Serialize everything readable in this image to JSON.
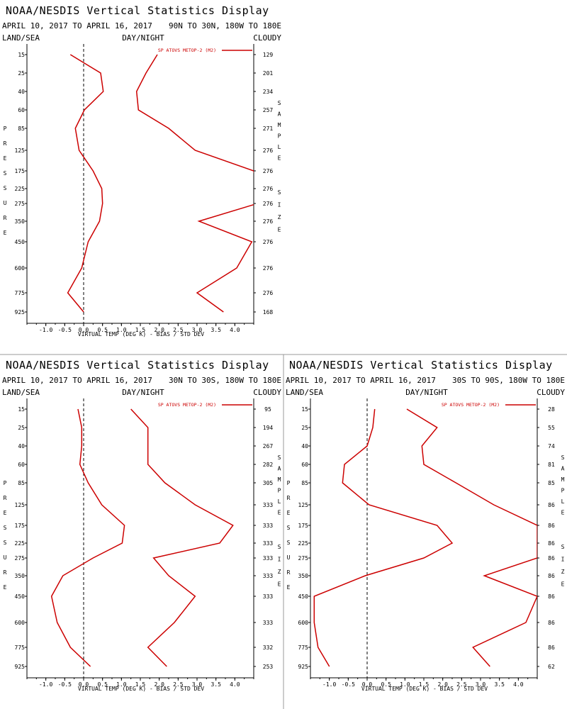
{
  "colors": {
    "series": "#cc0000",
    "divider": "#999999"
  },
  "chart_data": [
    {
      "type": "line",
      "title": "NOAA/NESDIS Vertical Statistics Display",
      "date_range": "APRIL 10, 2017 TO APRIL 16, 2017",
      "region": "90N TO 30N, 180W TO 180E",
      "top_left_label": "LAND/SEA",
      "top_center_label": "DAY/NIGHT",
      "top_right_label": "CLOUDY",
      "left_axis_vertical_label": "PRESSURE",
      "right_axis_vertical_label": "SAMPLE SIZE",
      "xlabel": "VIRTUAL TEMP (DEG K) - BIAS / STD DEV",
      "legend": "SP ATOVS METOP-2 (M2)",
      "xlim": [
        -1.5,
        4.5
      ],
      "xticks": [
        "-1.0",
        "-0.5",
        "0.0",
        "0.5",
        "1.0",
        "1.5",
        "2.0",
        "2.5",
        "3.0",
        "3.5",
        "4.0"
      ],
      "pressure_levels": [
        "15",
        "25",
        "40",
        "60",
        "85",
        "125",
        "175",
        "225",
        "275",
        "350",
        "450",
        "600",
        "775",
        "925"
      ],
      "sample_sizes": [
        "129",
        "201",
        "234",
        "257",
        "271",
        "276",
        "276",
        "276",
        "276",
        "276",
        "276",
        "276",
        "276",
        "168"
      ],
      "series": [
        {
          "values": [
            -0.35,
            0.45,
            0.52,
            0.02,
            -0.22,
            -0.12,
            0.25,
            0.48,
            0.5,
            0.42,
            0.12,
            -0.05,
            -0.42,
            0.0
          ]
        },
        {
          "values": [
            1.95,
            1.65,
            1.4,
            1.45,
            2.25,
            2.95,
            4.5,
            4.6,
            4.6,
            3.05,
            4.45,
            4.05,
            3.0,
            3.7
          ]
        }
      ]
    },
    {
      "type": "line",
      "title": "NOAA/NESDIS Vertical Statistics Display",
      "date_range": "APRIL 10, 2017 TO APRIL 16, 2017",
      "region": "30N TO 30S, 180W TO 180E",
      "top_left_label": "LAND/SEA",
      "top_center_label": "DAY/NIGHT",
      "top_right_label": "CLOUDY",
      "left_axis_vertical_label": "PRESSURE",
      "right_axis_vertical_label": "SAMPLE SIZE",
      "xlabel": "VIRTUAL TEMP (DEG K) - BIAS / STD DEV",
      "legend": "SP ATOVS METOP-2 (M2)",
      "xlim": [
        -1.5,
        4.5
      ],
      "xticks": [
        "-1.0",
        "-0.5",
        "0.0",
        "0.5",
        "1.0",
        "1.5",
        "2.0",
        "2.5",
        "3.0",
        "3.5",
        "4.0"
      ],
      "pressure_levels": [
        "15",
        "25",
        "40",
        "60",
        "85",
        "125",
        "175",
        "225",
        "275",
        "350",
        "450",
        "600",
        "775",
        "925"
      ],
      "sample_sizes": [
        "95",
        "194",
        "267",
        "282",
        "305",
        "333",
        "333",
        "333",
        "333",
        "333",
        "333",
        "333",
        "332",
        "253"
      ],
      "series": [
        {
          "values": [
            -0.15,
            -0.05,
            -0.05,
            -0.1,
            0.12,
            0.48,
            1.08,
            1.02,
            0.25,
            -0.55,
            -0.85,
            -0.7,
            -0.35,
            0.18
          ]
        },
        {
          "values": [
            1.25,
            1.7,
            1.7,
            1.7,
            2.15,
            2.95,
            3.95,
            3.6,
            1.85,
            2.25,
            2.95,
            2.4,
            1.7,
            2.2
          ]
        }
      ]
    },
    {
      "type": "line",
      "title": "NOAA/NESDIS Vertical Statistics Display",
      "date_range": "APRIL 10, 2017 TO APRIL 16, 2017",
      "region": "30S TO 90S, 180W TO 180E",
      "top_left_label": "LAND/SEA",
      "top_center_label": "DAY/NIGHT",
      "top_right_label": "CLOUDY",
      "left_axis_vertical_label": "PRESSURE",
      "right_axis_vertical_label": "SAMPLE SIZE",
      "xlabel": "VIRTUAL TEMP (DEG K) - BIAS / STD DEV",
      "legend": "SP ATOVS METOP-2 (M2)",
      "xlim": [
        -1.5,
        4.5
      ],
      "xticks": [
        "-1.0",
        "-0.5",
        "0.0",
        "0.5",
        "1.0",
        "1.5",
        "2.0",
        "2.5",
        "3.0",
        "3.5",
        "4.0"
      ],
      "pressure_levels": [
        "15",
        "25",
        "40",
        "60",
        "85",
        "125",
        "175",
        "225",
        "275",
        "350",
        "450",
        "600",
        "775",
        "925"
      ],
      "sample_sizes": [
        "28",
        "55",
        "74",
        "81",
        "85",
        "86",
        "86",
        "86",
        "86",
        "86",
        "86",
        "86",
        "86",
        "62"
      ],
      "series": [
        {
          "values": [
            0.2,
            0.15,
            0.0,
            -0.6,
            -0.65,
            0.05,
            1.85,
            2.25,
            1.5,
            -0.05,
            -1.4,
            -1.4,
            -1.3,
            -1.0
          ]
        },
        {
          "values": [
            1.05,
            1.85,
            1.45,
            1.5,
            2.35,
            3.35,
            4.5,
            4.5,
            4.5,
            3.1,
            4.5,
            4.2,
            2.8,
            3.25
          ]
        }
      ]
    }
  ]
}
